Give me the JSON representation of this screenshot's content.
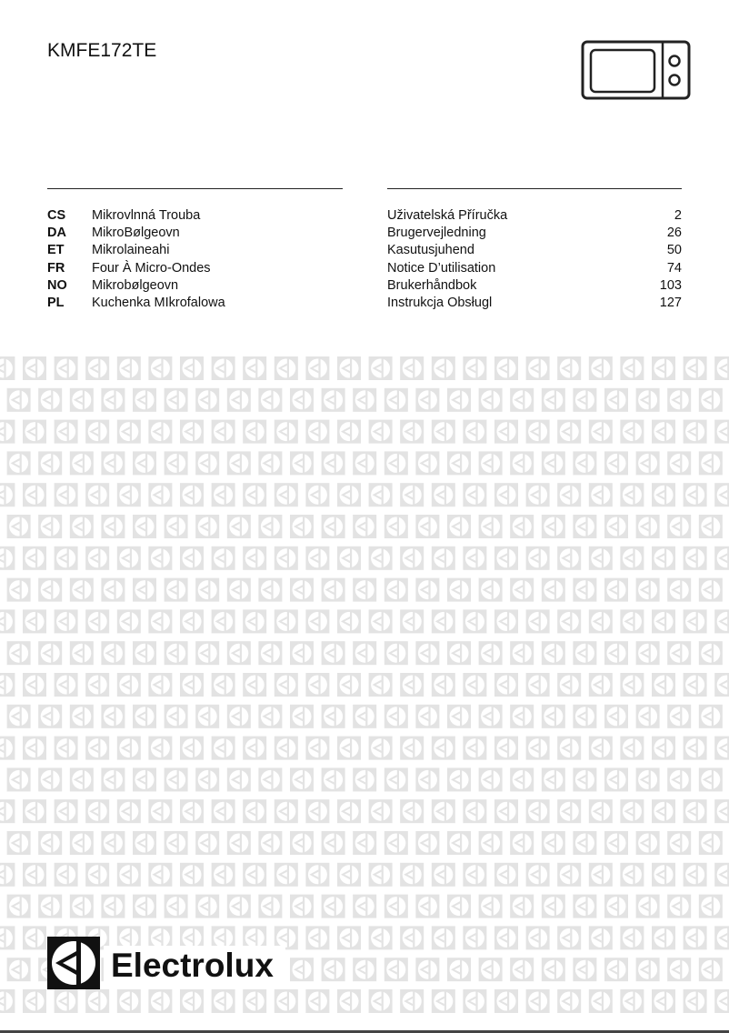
{
  "document": {
    "model": "KMFE172TE",
    "product_icon": "microwave-icon",
    "languages": [
      {
        "code": "CS",
        "product": "Mikrovlnná Trouba",
        "manual": "Uživatelská Příručka",
        "page": "2"
      },
      {
        "code": "DA",
        "product": "MikroBølgeovn",
        "manual": "Brugervejledning",
        "page": "26"
      },
      {
        "code": "ET",
        "product": "Mikrolaineahi",
        "manual": "Kasutusjuhend",
        "page": "50"
      },
      {
        "code": "FR",
        "product": "Four À Micro-Ondes",
        "manual": "Notice D’utilisation",
        "page": "74"
      },
      {
        "code": "NO",
        "product": "Mikrobølgeovn",
        "manual": "Brukerhåndbok",
        "page": "103"
      },
      {
        "code": "PL",
        "product": "Kuchenka MIkrofalowa",
        "manual": "Instrukcja Obsługl",
        "page": "127"
      }
    ],
    "brand": "Electrolux",
    "colors": {
      "text": "#111111",
      "pattern_tile": "#e3e3e3",
      "logo": "#111111"
    }
  }
}
